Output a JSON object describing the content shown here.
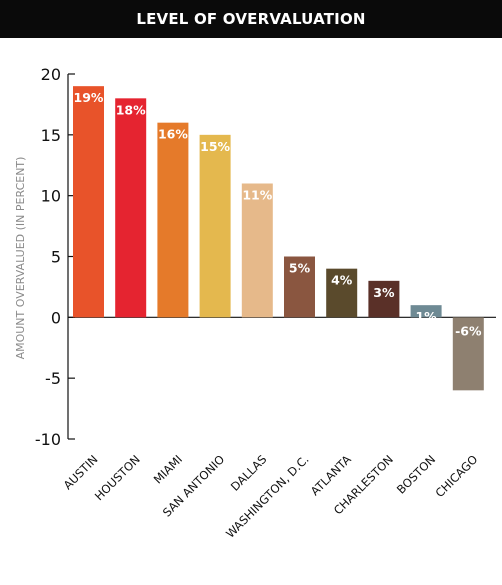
{
  "chart_data": {
    "type": "bar",
    "title": "LEVEL OF OVERVALUATION",
    "ylabel": "AMOUNT OVERVALUED (IN PERCENT)",
    "xlabel": "",
    "ylim": [
      -10,
      20
    ],
    "yticks": [
      -10,
      -5,
      0,
      5,
      10,
      15,
      20
    ],
    "grid": false,
    "categories": [
      "AUSTIN",
      "HOUSTON",
      "MIAMI",
      "SAN ANTONIO",
      "DALLAS",
      "WASHINGTON, D.C.",
      "ATLANTA",
      "CHARLESTON",
      "BOSTON",
      "CHICAGO"
    ],
    "values": [
      19,
      18,
      16,
      15,
      11,
      5,
      4,
      3,
      1,
      -6
    ],
    "data_labels": [
      "19%",
      "18%",
      "16%",
      "15%",
      "11%",
      "5%",
      "4%",
      "3%",
      "1%",
      "-6%"
    ],
    "colors": [
      "#E8532A",
      "#E52430",
      "#E57A2A",
      "#E4B84E",
      "#E6B98A",
      "#8A5640",
      "#5A4A2C",
      "#5A3028",
      "#6E8A94",
      "#8E8070"
    ]
  }
}
